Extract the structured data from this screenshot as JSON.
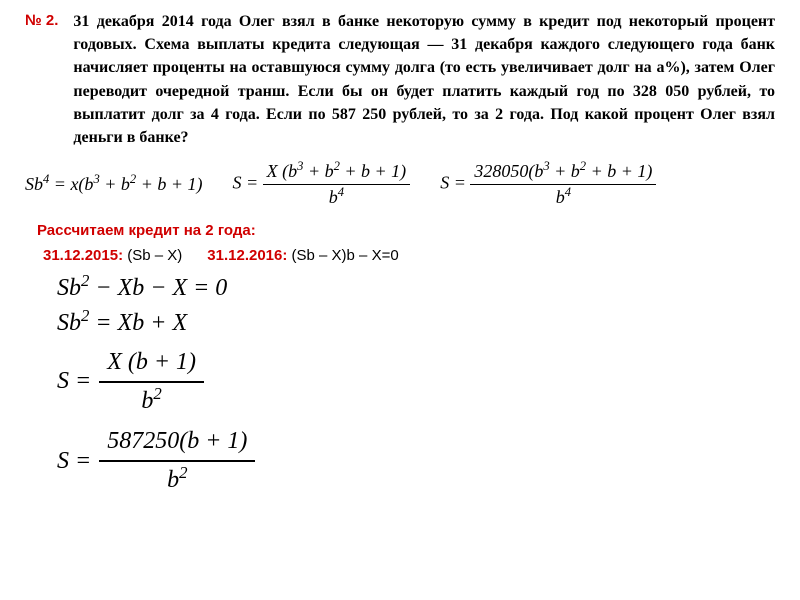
{
  "problem": {
    "number": "№ 2.",
    "text": "31 декабря 2014 года Олег взял в банке некоторую сумму в кредит под некоторый процент годовых. Схема выплаты кредита следующая — 31 декабря каждого следующего года банк начисляет проценты на оставшуюся сумму долга (то есть увеличивает долг на a%), затем Олег переводит очередной транш. Если бы он будет платить каждый год по 328 050 рублей, то выплатит долг за 4 года. Если по 587 250 рублей, то за 2 года. Под какой процент Олег взял деньги в банке?"
  },
  "formulas": {
    "f1_lhs": "Sb",
    "f1_exp": "4",
    "f1_rhs": " = x(b",
    "f1_poly": " + b",
    "f1_tail": " + b + 1)",
    "f2_lhs": "S = ",
    "f2_num_X": "X (b",
    "f2_den": "b",
    "f3_lhs": "S = ",
    "f3_num_const": "328050(b",
    "f3_den": "b",
    "const_328050": "328050",
    "const_587250": "587250"
  },
  "section": {
    "title": "Рассчитаем кредит на 2 года:"
  },
  "dates": {
    "d1_label": "31.12.2015:",
    "d1_expr": " (Sb – X)",
    "d2_label": "31.12.2016:",
    "d2_expr": " (Sb – X)b – X=0"
  },
  "equations": {
    "e1": "Sb",
    "e1_exp": "2",
    "e1_rest": " − Xb − X = 0",
    "e2": "Sb",
    "e2_exp": "2",
    "e2_rest": " = Xb + X",
    "e3_lhs": "S = ",
    "e3_num": "X (b + 1)",
    "e3_den_b": "b",
    "e3_den_exp": "2",
    "e4_lhs": "S = ",
    "e4_num": "587250(b + 1)",
    "e4_den_b": "b",
    "e4_den_exp": "2"
  },
  "style": {
    "accent_color": "#d00000",
    "text_color": "#000000",
    "background": "#ffffff"
  }
}
